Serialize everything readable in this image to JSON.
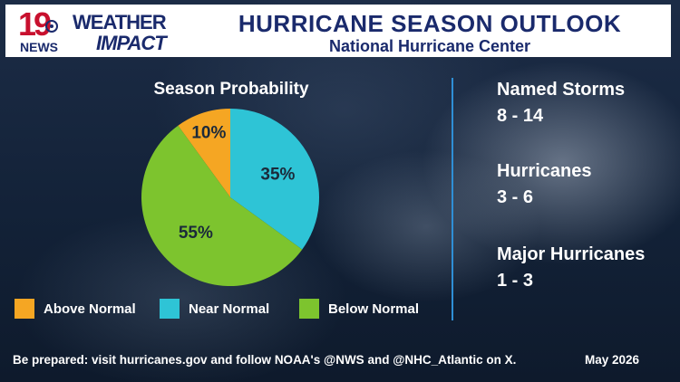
{
  "header": {
    "logo_number": "19",
    "logo_news": "NEWS",
    "logo_weather": "WEATHER",
    "logo_impact": "IMPACT",
    "title": "HURRICANE SEASON OUTLOOK",
    "subtitle": "National Hurricane Center"
  },
  "chart_data": {
    "type": "pie",
    "title": "Season Probability",
    "slices": [
      {
        "label": "Above Normal",
        "value": 10,
        "display": "10%",
        "color": "#f5a623"
      },
      {
        "label": "Near Normal",
        "value": 35,
        "display": "35%",
        "color": "#2ec4d6"
      },
      {
        "label": "Below Normal",
        "value": 55,
        "display": "55%",
        "color": "#7dc42e"
      }
    ],
    "legend_placement": "bottom"
  },
  "stats": [
    {
      "label": "Named Storms",
      "value": "8 - 14"
    },
    {
      "label": "Hurricanes",
      "value": "3 - 6"
    },
    {
      "label": "Major Hurricanes",
      "value": "1 - 3"
    }
  ],
  "footer": {
    "note": "Be prepared: visit hurricanes.gov and follow NOAA's @NWS and @NHC_Atlantic on X.",
    "date": "May 2026"
  }
}
